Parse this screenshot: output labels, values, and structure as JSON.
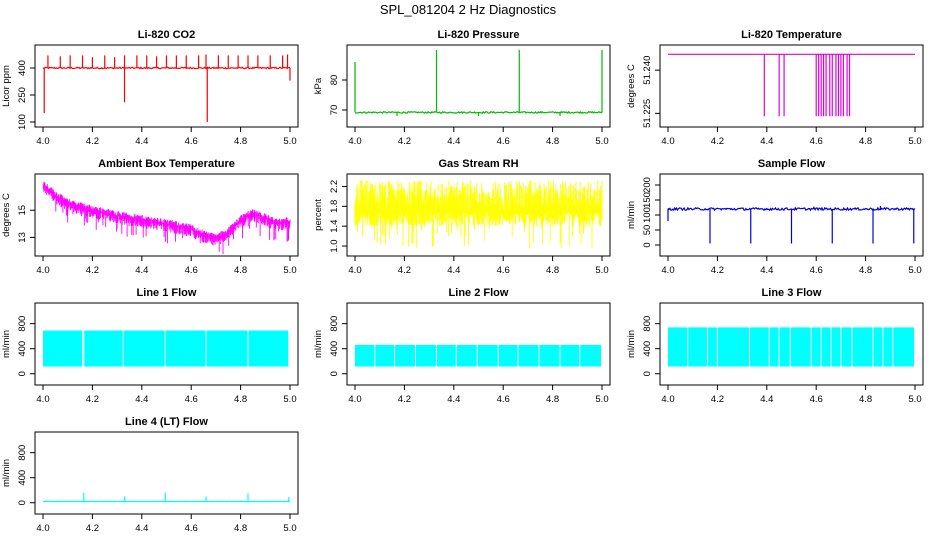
{
  "suptitle": "SPL_081204  2 Hz Diagnostics",
  "chart_data": [
    {
      "type": "line",
      "title": "Li-820 CO2",
      "ylabel": "Licor ppm",
      "color": "#ff0000",
      "xlim": [
        4.0,
        5.0
      ],
      "ylim": [
        100,
        500
      ],
      "xticks": [
        4.0,
        4.2,
        4.4,
        4.6,
        4.8,
        5.0
      ],
      "xtick_labels": [
        "4.0",
        "4.2",
        "4.4",
        "4.6",
        "4.8",
        "5.0"
      ],
      "yticks": [
        100,
        250,
        400
      ],
      "ytick_labels": [
        "100",
        "250",
        "400"
      ],
      "pattern": {
        "base": 400,
        "noise": 4,
        "spikes_up": [
          [
            4.02,
            470
          ],
          [
            4.07,
            465
          ],
          [
            4.11,
            470
          ],
          [
            4.16,
            470
          ],
          [
            4.2,
            460
          ],
          [
            4.25,
            470
          ],
          [
            4.29,
            460
          ],
          [
            4.33,
            470
          ],
          [
            4.38,
            470
          ],
          [
            4.42,
            470
          ],
          [
            4.46,
            465
          ],
          [
            4.5,
            470
          ],
          [
            4.54,
            470
          ],
          [
            4.58,
            470
          ],
          [
            4.63,
            470
          ],
          [
            4.66,
            475
          ],
          [
            4.71,
            470
          ],
          [
            4.75,
            470
          ],
          [
            4.79,
            470
          ],
          [
            4.83,
            470
          ],
          [
            4.87,
            470
          ],
          [
            4.92,
            470
          ],
          [
            4.97,
            470
          ],
          [
            4.99,
            475
          ]
        ],
        "spikes_down": [
          [
            4.005,
            150
          ],
          [
            4.33,
            210
          ],
          [
            4.665,
            100
          ],
          [
            5.0,
            330
          ]
        ]
      }
    },
    {
      "type": "line",
      "title": "Li-820 Pressure",
      "ylabel": "kPa",
      "color": "#00bb00",
      "xlim": [
        4.0,
        5.0
      ],
      "ylim": [
        66,
        90
      ],
      "xticks": [
        4.0,
        4.2,
        4.4,
        4.6,
        4.8,
        5.0
      ],
      "xtick_labels": [
        "4.0",
        "4.2",
        "4.4",
        "4.6",
        "4.8",
        "5.0"
      ],
      "yticks": [
        70,
        80
      ],
      "ytick_labels": [
        "70",
        "80"
      ],
      "pattern": {
        "base": 69.2,
        "noise": 0.25,
        "spikes_up": [
          [
            4.0,
            86
          ],
          [
            4.33,
            90
          ],
          [
            4.665,
            90
          ],
          [
            5.0,
            90
          ]
        ],
        "spikes_down": [
          [
            4.17,
            68
          ],
          [
            4.5,
            68
          ],
          [
            4.83,
            68
          ]
        ]
      }
    },
    {
      "type": "line",
      "title": "Li-820 Temperature",
      "ylabel": "degrees C",
      "color": "#dd00dd",
      "xlim": [
        4.0,
        5.0
      ],
      "ylim": [
        51.222,
        51.247
      ],
      "xticks": [
        4.0,
        4.2,
        4.4,
        4.6,
        4.8,
        5.0
      ],
      "xtick_labels": [
        "4.0",
        "4.2",
        "4.4",
        "4.6",
        "4.8",
        "5.0"
      ],
      "yticks": [
        51.225,
        51.24
      ],
      "ytick_labels": [
        "51.225",
        "51.240"
      ],
      "pattern": {
        "base": 51.2455,
        "noise": 0,
        "spikes_down": [
          [
            4.39,
            51.224
          ],
          [
            4.45,
            51.224
          ],
          [
            4.47,
            51.224
          ],
          [
            4.6,
            51.224
          ],
          [
            4.61,
            51.224
          ],
          [
            4.62,
            51.224
          ],
          [
            4.63,
            51.224
          ],
          [
            4.64,
            51.224
          ],
          [
            4.655,
            51.224
          ],
          [
            4.665,
            51.224
          ],
          [
            4.68,
            51.224
          ],
          [
            4.69,
            51.224
          ],
          [
            4.7,
            51.224
          ],
          [
            4.71,
            51.224
          ],
          [
            4.725,
            51.224
          ],
          [
            4.735,
            51.224
          ]
        ]
      }
    },
    {
      "type": "line",
      "title": "Ambient Box Temperature",
      "ylabel": "degrees C",
      "color": "#ff00ff",
      "xlim": [
        4.0,
        5.0
      ],
      "ylim": [
        12.0,
        17.3
      ],
      "xticks": [
        4.0,
        4.2,
        4.4,
        4.6,
        4.8,
        5.0
      ],
      "xtick_labels": [
        "4.0",
        "4.2",
        "4.4",
        "4.6",
        "4.8",
        "5.0"
      ],
      "yticks": [
        13,
        15
      ],
      "ytick_labels": [
        "13",
        "15"
      ],
      "trend": [
        [
          4.0,
          16.9
        ],
        [
          4.05,
          16.1
        ],
        [
          4.1,
          15.5
        ],
        [
          4.2,
          15.0
        ],
        [
          4.3,
          14.6
        ],
        [
          4.4,
          14.3
        ],
        [
          4.5,
          14.0
        ],
        [
          4.6,
          13.6
        ],
        [
          4.65,
          13.2
        ],
        [
          4.7,
          12.9
        ],
        [
          4.75,
          13.4
        ],
        [
          4.8,
          14.3
        ],
        [
          4.85,
          14.8
        ],
        [
          4.9,
          14.4
        ],
        [
          4.95,
          14.0
        ],
        [
          5.0,
          14.2
        ]
      ],
      "band": [
        0.4,
        1.0
      ]
    },
    {
      "type": "line",
      "title": "Gas Stream RH",
      "ylabel": "percent",
      "color": "#ffff00",
      "xlim": [
        4.0,
        5.0
      ],
      "ylim": [
        0.9,
        2.35
      ],
      "xticks": [
        4.0,
        4.2,
        4.4,
        4.6,
        4.8,
        5.0
      ],
      "xtick_labels": [
        "4.0",
        "4.2",
        "4.4",
        "4.6",
        "4.8",
        "5.0"
      ],
      "yticks": [
        1.0,
        1.4,
        1.8,
        2.2
      ],
      "ytick_labels": [
        "1.0",
        "1.4",
        "1.8",
        "2.2"
      ],
      "trend": [
        [
          4.0,
          1.7
        ],
        [
          5.0,
          1.7
        ]
      ],
      "band": [
        0.7,
        0.5
      ]
    },
    {
      "type": "line",
      "title": "Sample Flow",
      "ylabel": "ml/min",
      "color": "#0000dd",
      "xlim": [
        4.0,
        5.0
      ],
      "ylim": [
        -20,
        220
      ],
      "xticks": [
        4.0,
        4.2,
        4.4,
        4.6,
        4.8,
        5.0
      ],
      "xtick_labels": [
        "4.0",
        "4.2",
        "4.4",
        "4.6",
        "4.8",
        "5.0"
      ],
      "yticks": [
        0,
        50,
        100,
        150,
        200
      ],
      "ytick_labels": [
        "0",
        "50",
        "100",
        "150",
        "200"
      ],
      "pattern": {
        "base": 120,
        "noise": 4,
        "spikes_down": [
          [
            4.0,
            80
          ],
          [
            4.17,
            5
          ],
          [
            4.335,
            5
          ],
          [
            4.5,
            5
          ],
          [
            4.665,
            5
          ],
          [
            4.83,
            5
          ],
          [
            4.995,
            5
          ]
        ],
        "spikes_up": [
          [
            4.59,
            128
          ],
          [
            4.86,
            130
          ]
        ]
      }
    },
    {
      "type": "line",
      "title": "Line 1 Flow",
      "ylabel": "ml/min",
      "color": "#00ffff",
      "xlim": [
        4.0,
        5.0
      ],
      "ylim": [
        -100,
        1050
      ],
      "xticks": [
        4.0,
        4.2,
        4.4,
        4.6,
        4.8,
        5.0
      ],
      "xtick_labels": [
        "4.0",
        "4.2",
        "4.4",
        "4.6",
        "4.8",
        "5.0"
      ],
      "yticks": [
        0,
        400,
        800
      ],
      "ytick_labels": [
        "0",
        "400",
        "800"
      ],
      "block": {
        "top": 690,
        "bottom": 115,
        "gaps": [
          4.16,
          4.165,
          4.325,
          4.495,
          4.66,
          4.83,
          4.995
        ]
      }
    },
    {
      "type": "line",
      "title": "Line 2 Flow",
      "ylabel": "ml/min",
      "color": "#00ffff",
      "xlim": [
        4.0,
        5.0
      ],
      "ylim": [
        -100,
        1050
      ],
      "xticks": [
        4.0,
        4.2,
        4.4,
        4.6,
        4.8,
        5.0
      ],
      "xtick_labels": [
        "4.0",
        "4.2",
        "4.4",
        "4.6",
        "4.8",
        "5.0"
      ],
      "yticks": [
        0,
        400,
        800
      ],
      "ytick_labels": [
        "0",
        "400",
        "800"
      ],
      "block": {
        "top": 460,
        "bottom": 115,
        "gaps": [
          4.08,
          4.16,
          4.245,
          4.33,
          4.41,
          4.495,
          4.58,
          4.66,
          4.745,
          4.83,
          4.91
        ]
      }
    },
    {
      "type": "line",
      "title": "Line 3 Flow",
      "ylabel": "ml/min",
      "color": "#00ffff",
      "xlim": [
        4.0,
        5.0
      ],
      "ylim": [
        -100,
        1050
      ],
      "xticks": [
        4.0,
        4.2,
        4.4,
        4.6,
        4.8,
        5.0
      ],
      "xtick_labels": [
        "4.0",
        "4.2",
        "4.4",
        "4.6",
        "4.8",
        "5.0"
      ],
      "yticks": [
        0,
        400,
        800
      ],
      "ytick_labels": [
        "0",
        "400",
        "800"
      ],
      "block": {
        "top": 740,
        "bottom": 115,
        "gaps": [
          4.08,
          4.16,
          4.2,
          4.33,
          4.41,
          4.45,
          4.495,
          4.58,
          4.62,
          4.66,
          4.7,
          4.745,
          4.83,
          4.87,
          4.91
        ]
      }
    },
    {
      "type": "line",
      "title": "Line 4 (LT) Flow",
      "ylabel": "ml/min",
      "color": "#00ffff",
      "xlim": [
        4.0,
        5.0
      ],
      "ylim": [
        -100,
        1050
      ],
      "xticks": [
        4.0,
        4.2,
        4.4,
        4.6,
        4.8,
        5.0
      ],
      "xtick_labels": [
        "4.0",
        "4.2",
        "4.4",
        "4.6",
        "4.8",
        "5.0"
      ],
      "yticks": [
        0,
        400,
        800
      ],
      "ytick_labels": [
        "0",
        "400",
        "800"
      ],
      "pattern": {
        "base": 20,
        "noise": 3,
        "spikes_up": [
          [
            4.165,
            160
          ],
          [
            4.33,
            100
          ],
          [
            4.495,
            160
          ],
          [
            4.66,
            100
          ],
          [
            4.83,
            150
          ],
          [
            4.995,
            90
          ]
        ]
      }
    }
  ]
}
